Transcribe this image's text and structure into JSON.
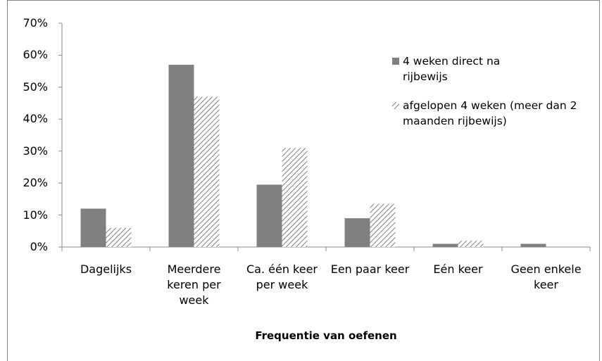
{
  "chart_data": {
    "type": "bar",
    "x_label": "Frequentie van oefenen",
    "categories": [
      "Dagelijks",
      "Meerdere keren per week",
      "Ca. één keer per week",
      "Een paar keer",
      "Eén keer",
      "Geen enkele keer"
    ],
    "series": [
      {
        "name": "4 weken direct na rijbewijs",
        "color": "#808080",
        "hatch": false,
        "values": [
          12,
          57,
          19.5,
          9,
          1,
          1
        ]
      },
      {
        "name": "afgelopen 4 weken (meer dan 2 maanden rijbewijs)",
        "color": "#808080",
        "hatch": true,
        "values": [
          6,
          47,
          31,
          13.5,
          2,
          0
        ]
      }
    ],
    "ylim": [
      0,
      70
    ],
    "yticks": [
      {
        "value": 0,
        "label": "0%"
      },
      {
        "value": 10,
        "label": "10%"
      },
      {
        "value": 20,
        "label": "20%"
      },
      {
        "value": 30,
        "label": "30%"
      },
      {
        "value": 40,
        "label": "40%"
      },
      {
        "value": 50,
        "label": "50%"
      },
      {
        "value": 60,
        "label": "60%"
      },
      {
        "value": 70,
        "label": "70%"
      }
    ],
    "grid": false,
    "legend": "upper right"
  }
}
